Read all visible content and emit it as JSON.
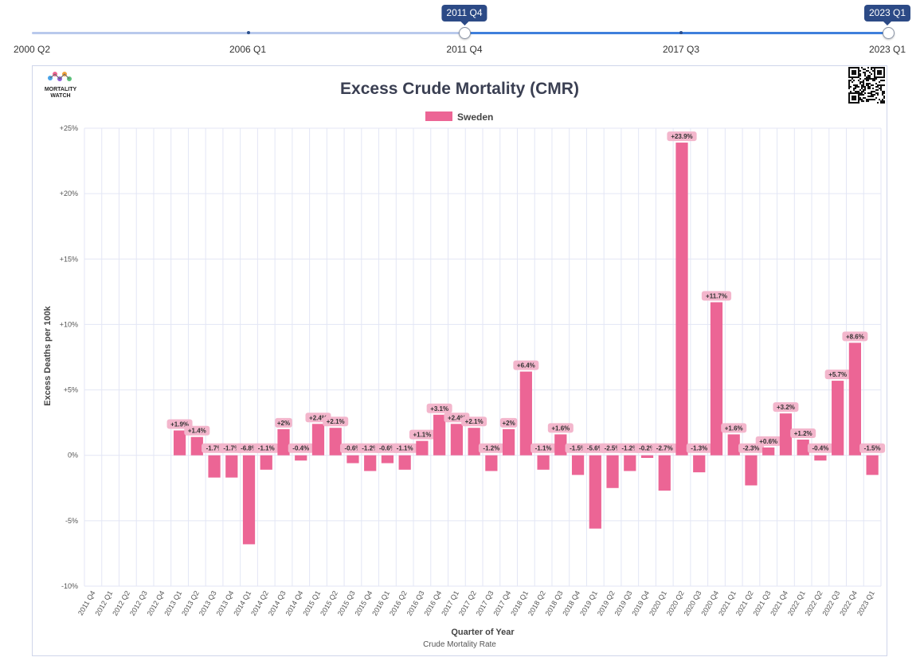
{
  "slider": {
    "labels": [
      "2000 Q2",
      "2006 Q1",
      "2011 Q4",
      "2017 Q3",
      "2023 Q1"
    ],
    "handle_start": "2011 Q4",
    "handle_end": "2023 Q1"
  },
  "logo": {
    "text_line1": "MORTALITY",
    "text_line2": "WATCH"
  },
  "colors": {
    "bar": "#ec6595",
    "label_bg": "#f3b6cc",
    "grid": "#e3e6f5",
    "slider_fill": "#3f7fdc",
    "slider_track": "#b9c9ec",
    "tooltip": "#2c4a86"
  },
  "chart_data": {
    "type": "bar",
    "title": "Excess Crude Mortality (CMR)",
    "xlabel": "Quarter of Year",
    "ylabel": "Excess Deaths per 100k",
    "footer": "Crude Mortality Rate",
    "legend": {
      "position": "top-center",
      "entries": [
        "Sweden"
      ]
    },
    "ylim": [
      -10,
      25
    ],
    "yticks": [
      "+25%",
      "+20%",
      "+15%",
      "+10%",
      "+5%",
      "0%",
      "-5%",
      "-10%"
    ],
    "ytick_values": [
      25,
      20,
      15,
      10,
      5,
      0,
      -5,
      -10
    ],
    "grid": true,
    "categories": [
      "2011 Q4",
      "2012 Q1",
      "2012 Q2",
      "2012 Q3",
      "2012 Q4",
      "2013 Q1",
      "2013 Q2",
      "2013 Q3",
      "2013 Q4",
      "2014 Q1",
      "2014 Q2",
      "2014 Q3",
      "2014 Q4",
      "2015 Q1",
      "2015 Q2",
      "2015 Q3",
      "2015 Q4",
      "2016 Q1",
      "2016 Q2",
      "2016 Q3",
      "2016 Q4",
      "2017 Q1",
      "2017 Q2",
      "2017 Q3",
      "2017 Q4",
      "2018 Q1",
      "2018 Q2",
      "2018 Q3",
      "2018 Q4",
      "2019 Q1",
      "2019 Q2",
      "2019 Q3",
      "2019 Q4",
      "2020 Q1",
      "2020 Q2",
      "2020 Q3",
      "2020 Q4",
      "2021 Q1",
      "2021 Q2",
      "2021 Q3",
      "2021 Q4",
      "2022 Q1",
      "2022 Q2",
      "2022 Q3",
      "2022 Q4",
      "2023 Q1"
    ],
    "series": [
      {
        "name": "Sweden",
        "values": [
          null,
          null,
          null,
          null,
          null,
          1.9,
          1.4,
          -1.7,
          -1.7,
          -6.8,
          -1.1,
          2,
          -0.4,
          2.4,
          2.1,
          -0.6,
          -1.2,
          -0.6,
          -1.1,
          1.1,
          3.1,
          2.4,
          2.1,
          -1.2,
          2,
          6.4,
          -1.1,
          1.6,
          -1.5,
          -5.6,
          -2.5,
          -1.2,
          -0.2,
          -2.7,
          23.9,
          -1.3,
          11.7,
          1.6,
          -2.3,
          0.6,
          3.2,
          1.2,
          -0.4,
          5.7,
          8.6,
          -1.5
        ],
        "labels": [
          "",
          "",
          "",
          "",
          "",
          "+1.9%",
          "+1.4%",
          "-1.7%",
          "-1.7%",
          "-6.8%",
          "-1.1%",
          "+2%",
          "-0.4%",
          "+2.4%",
          "+2.1%",
          "-0.6%",
          "-1.2%",
          "-0.6%",
          "-1.1%",
          "+1.1%",
          "+3.1%",
          "+2.4%",
          "+2.1%",
          "-1.2%",
          "+2%",
          "+6.4%",
          "-1.1%",
          "+1.6%",
          "-1.5%",
          "-5.6%",
          "-2.5%",
          "-1.2%",
          "-0.2%",
          "-2.7%",
          "+23.9%",
          "-1.3%",
          "+11.7%",
          "+1.6%",
          "-2.3%",
          "+0.6%",
          "+3.2%",
          "+1.2%",
          "-0.4%",
          "+5.7%",
          "+8.6%",
          "-1.5%"
        ]
      }
    ]
  }
}
